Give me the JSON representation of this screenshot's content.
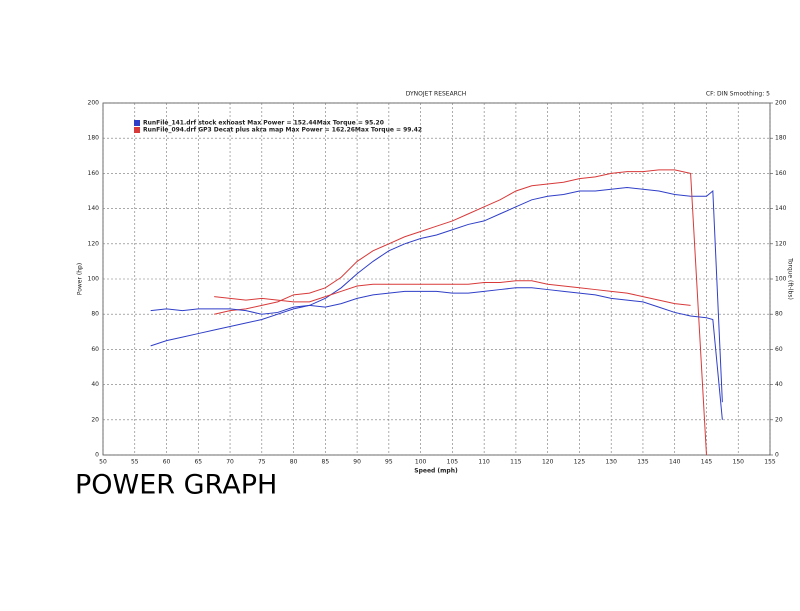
{
  "chart_data": {
    "type": "line",
    "title": "DYNOJET RESEARCH",
    "subtitle": "CF: DIN  Smoothing: 5",
    "xlabel": "Speed (mph)",
    "ylabel": "Power (hp)",
    "y2label": "Torque (ft-lbs)",
    "x": [
      57.5,
      60,
      62.5,
      65,
      67.5,
      70,
      72.5,
      75,
      77.5,
      80,
      82.5,
      85,
      87.5,
      90,
      92.5,
      95,
      97.5,
      100,
      102.5,
      105,
      107.5,
      110,
      112.5,
      115,
      117.5,
      120,
      122.5,
      125,
      127.5,
      130,
      132.5,
      135,
      137.5,
      140,
      142.5,
      145,
      146,
      147.5
    ],
    "series": [
      {
        "name": "RunFile_141.drf  stock exhoast Max Power = 152.44Max Torque = 95.20",
        "color": "#2f3fc8",
        "values": [
          62,
          65,
          67,
          69,
          71,
          73,
          75,
          77,
          80,
          83,
          85,
          89,
          95,
          103,
          110,
          116,
          120,
          123,
          125,
          128,
          131,
          133,
          137,
          141,
          145,
          147,
          148,
          150,
          150,
          151,
          152,
          151,
          150,
          148,
          147,
          147,
          150,
          30
        ]
      },
      {
        "name": "RunFile_094.drf  GP3 Decat plus akra map Max Power = 162.26Max Torque = 99.42",
        "color": "#d83a3a",
        "values": [
          null,
          null,
          null,
          null,
          80,
          82,
          83,
          85,
          87,
          91,
          92,
          95,
          101,
          110,
          116,
          120,
          124,
          127,
          130,
          133,
          137,
          141,
          145,
          150,
          153,
          154,
          155,
          157,
          158,
          160,
          161,
          161,
          162,
          162,
          160,
          0,
          null,
          null
        ]
      },
      {
        "color": "#2f3fc8",
        "axis": "y2",
        "values": [
          82,
          83,
          82,
          83,
          83,
          83,
          82,
          80,
          81,
          84,
          85,
          84,
          86,
          89,
          91,
          92,
          93,
          93,
          93,
          92,
          92,
          93,
          94,
          95,
          95,
          94,
          93,
          92,
          91,
          89,
          88,
          87,
          84,
          81,
          79,
          78,
          77,
          20
        ]
      },
      {
        "color": "#d83a3a",
        "axis": "y2",
        "values": [
          null,
          null,
          null,
          null,
          90,
          89,
          88,
          89,
          88,
          87,
          87,
          90,
          93,
          96,
          97,
          97,
          97,
          97,
          97,
          97,
          97,
          98,
          98,
          99,
          99,
          97,
          96,
          95,
          94,
          93,
          92,
          90,
          88,
          86,
          85,
          null,
          null,
          null
        ]
      }
    ],
    "xlim": [
      50,
      155
    ],
    "xticks": [
      50,
      55,
      60,
      65,
      70,
      75,
      80,
      85,
      90,
      95,
      100,
      105,
      110,
      115,
      120,
      125,
      130,
      135,
      140,
      145,
      150,
      155
    ],
    "ylim": [
      0,
      200
    ],
    "yticks": [
      0,
      20,
      40,
      60,
      80,
      100,
      120,
      140,
      160,
      180,
      200
    ],
    "y2lim": [
      0,
      200
    ],
    "y2ticks": [
      0,
      20,
      40,
      60,
      80,
      100,
      120,
      140,
      160,
      180,
      200
    ],
    "grid": true,
    "legend": "upper left"
  },
  "caption": "POWER GRAPH"
}
